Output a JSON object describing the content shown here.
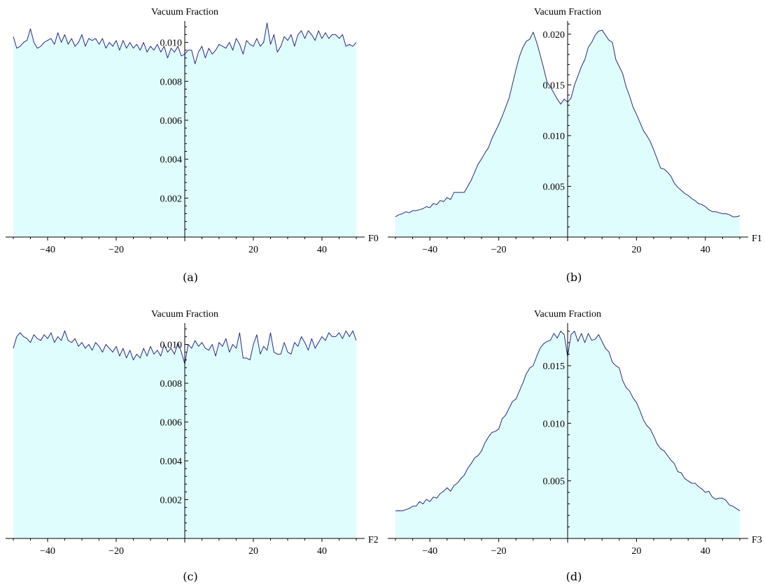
{
  "figure": {
    "colors": {
      "fill": "#e0fdfd",
      "line": "#2b2a86",
      "axis": "#000000"
    }
  },
  "chart_data": [
    {
      "type": "area",
      "title": "Vacuum Fraction",
      "xlabel": "F0",
      "caption": "(a)",
      "xlim": [
        -50,
        50
      ],
      "ylim": [
        0,
        0.0111
      ],
      "xticks": [
        -40,
        -20,
        20,
        40
      ],
      "xtick_labels": [
        "−40",
        "−20",
        "20",
        "40"
      ],
      "yticks": [
        0.002,
        0.004,
        0.006,
        0.008,
        0.01
      ],
      "ytick_labels": [
        "0.002",
        "0.004",
        "0.006",
        "0.008",
        "0.010"
      ],
      "x": [
        -50,
        -49,
        -48,
        -47,
        -46,
        -45,
        -44,
        -43,
        -42,
        -41,
        -40,
        -39,
        -38,
        -37,
        -36,
        -35,
        -34,
        -33,
        -32,
        -31,
        -30,
        -29,
        -28,
        -27,
        -26,
        -25,
        -24,
        -23,
        -22,
        -21,
        -20,
        -19,
        -18,
        -17,
        -16,
        -15,
        -14,
        -13,
        -12,
        -11,
        -10,
        -9,
        -8,
        -7,
        -6,
        -5,
        -4,
        -3,
        -2,
        -1,
        0,
        1,
        2,
        3,
        4,
        5,
        6,
        7,
        8,
        9,
        10,
        11,
        12,
        13,
        14,
        15,
        16,
        17,
        18,
        19,
        20,
        21,
        22,
        23,
        24,
        25,
        26,
        27,
        28,
        29,
        30,
        31,
        32,
        33,
        34,
        35,
        36,
        37,
        38,
        39,
        40,
        41,
        42,
        43,
        44,
        45,
        46,
        47,
        48,
        49,
        50
      ],
      "y": [
        0.0103,
        0.0097,
        0.0098,
        0.01,
        0.0101,
        0.0107,
        0.01,
        0.0097,
        0.0098,
        0.01,
        0.0101,
        0.0102,
        0.0099,
        0.0105,
        0.01,
        0.0104,
        0.0099,
        0.0102,
        0.0098,
        0.01,
        0.0104,
        0.0098,
        0.0102,
        0.0101,
        0.0102,
        0.0099,
        0.0102,
        0.0097,
        0.01,
        0.0098,
        0.0101,
        0.0096,
        0.0101,
        0.0097,
        0.01,
        0.0097,
        0.0099,
        0.0096,
        0.01,
        0.0095,
        0.0098,
        0.0096,
        0.0099,
        0.0095,
        0.0098,
        0.0092,
        0.0097,
        0.0095,
        0.0098,
        0.0093,
        0.0094,
        0.0096,
        0.0096,
        0.0089,
        0.0095,
        0.0098,
        0.0092,
        0.0097,
        0.0094,
        0.0096,
        0.0099,
        0.0098,
        0.0097,
        0.01,
        0.0096,
        0.0102,
        0.0099,
        0.0094,
        0.0101,
        0.0099,
        0.0098,
        0.0102,
        0.0098,
        0.01,
        0.011,
        0.0099,
        0.0104,
        0.0095,
        0.0098,
        0.0103,
        0.0101,
        0.0104,
        0.0098,
        0.0104,
        0.0106,
        0.0102,
        0.0106,
        0.0104,
        0.0101,
        0.0106,
        0.0102,
        0.0105,
        0.0102,
        0.0104,
        0.0104,
        0.0102,
        0.0104,
        0.0098,
        0.0099,
        0.0098,
        0.01
      ]
    },
    {
      "type": "area",
      "title": "Vacuum Fraction",
      "xlabel": "F1",
      "caption": "(b)",
      "xlim": [
        -50,
        50
      ],
      "ylim": [
        0,
        0.0213
      ],
      "xticks": [
        -40,
        -20,
        20,
        40
      ],
      "xtick_labels": [
        "−40",
        "−20",
        "20",
        "40"
      ],
      "yticks": [
        0.005,
        0.01,
        0.015,
        0.02
      ],
      "ytick_labels": [
        "0.005",
        "0.010",
        "0.015",
        "0.020"
      ],
      "x": [
        -50,
        -49,
        -48,
        -47,
        -46,
        -45,
        -44,
        -43,
        -42,
        -41,
        -40,
        -39,
        -38,
        -37,
        -36,
        -35,
        -34,
        -33,
        -32,
        -31,
        -30,
        -29,
        -28,
        -27,
        -26,
        -25,
        -24,
        -23,
        -22,
        -21,
        -20,
        -19,
        -18,
        -17,
        -16,
        -15,
        -14,
        -13,
        -12,
        -11,
        -10,
        -9,
        -8,
        -7,
        -6,
        -5,
        -4,
        -3,
        -2,
        -1,
        0,
        1,
        2,
        3,
        4,
        5,
        6,
        7,
        8,
        9,
        10,
        11,
        12,
        13,
        14,
        15,
        16,
        17,
        18,
        19,
        20,
        21,
        22,
        23,
        24,
        25,
        26,
        27,
        28,
        29,
        30,
        31,
        32,
        33,
        34,
        35,
        36,
        37,
        38,
        39,
        40,
        41,
        42,
        43,
        44,
        45,
        46,
        47,
        48,
        49,
        50
      ],
      "y": [
        0.002,
        0.0022,
        0.0023,
        0.0025,
        0.0024,
        0.0026,
        0.0026,
        0.0027,
        0.0028,
        0.003,
        0.0029,
        0.0033,
        0.0032,
        0.0036,
        0.0035,
        0.0039,
        0.0037,
        0.0044,
        0.0044,
        0.0044,
        0.0044,
        0.005,
        0.0056,
        0.0064,
        0.0072,
        0.0077,
        0.0083,
        0.0088,
        0.0097,
        0.0104,
        0.0111,
        0.0119,
        0.0128,
        0.0137,
        0.0151,
        0.0165,
        0.0178,
        0.0187,
        0.0193,
        0.0195,
        0.0202,
        0.0192,
        0.018,
        0.0167,
        0.0153,
        0.0148,
        0.0142,
        0.0136,
        0.0131,
        0.0136,
        0.0133,
        0.0137,
        0.015,
        0.0159,
        0.0168,
        0.0175,
        0.0187,
        0.0192,
        0.0199,
        0.0203,
        0.0204,
        0.0199,
        0.0194,
        0.0192,
        0.0175,
        0.0168,
        0.0161,
        0.0148,
        0.0139,
        0.0128,
        0.0121,
        0.0113,
        0.0105,
        0.01,
        0.0094,
        0.0086,
        0.0077,
        0.0068,
        0.0067,
        0.0064,
        0.006,
        0.0053,
        0.0049,
        0.0046,
        0.0043,
        0.0041,
        0.0038,
        0.0036,
        0.0033,
        0.0032,
        0.003,
        0.0027,
        0.0025,
        0.0025,
        0.0024,
        0.0023,
        0.0023,
        0.0022,
        0.002,
        0.002,
        0.0021
      ]
    },
    {
      "type": "area",
      "title": "Vacuum Fraction",
      "xlabel": "F2",
      "caption": "(c)",
      "xlim": [
        -50,
        50
      ],
      "ylim": [
        0,
        0.0111
      ],
      "xticks": [
        -40,
        -20,
        20,
        40
      ],
      "xtick_labels": [
        "−40",
        "−20",
        "20",
        "40"
      ],
      "yticks": [
        0.002,
        0.004,
        0.006,
        0.008,
        0.01
      ],
      "ytick_labels": [
        "0.002",
        "0.004",
        "0.006",
        "0.008",
        "0.010"
      ],
      "x": [
        -50,
        -49,
        -48,
        -47,
        -46,
        -45,
        -44,
        -43,
        -42,
        -41,
        -40,
        -39,
        -38,
        -37,
        -36,
        -35,
        -34,
        -33,
        -32,
        -31,
        -30,
        -29,
        -28,
        -27,
        -26,
        -25,
        -24,
        -23,
        -22,
        -21,
        -20,
        -19,
        -18,
        -17,
        -16,
        -15,
        -14,
        -13,
        -12,
        -11,
        -10,
        -9,
        -8,
        -7,
        -6,
        -5,
        -4,
        -3,
        -2,
        -1,
        0,
        1,
        2,
        3,
        4,
        5,
        6,
        7,
        8,
        9,
        10,
        11,
        12,
        13,
        14,
        15,
        16,
        17,
        18,
        19,
        20,
        21,
        22,
        23,
        24,
        25,
        26,
        27,
        28,
        29,
        30,
        31,
        32,
        33,
        34,
        35,
        36,
        37,
        38,
        39,
        40,
        41,
        42,
        43,
        44,
        45,
        46,
        47,
        48,
        49,
        50
      ],
      "y": [
        0.0098,
        0.0104,
        0.0106,
        0.0104,
        0.0103,
        0.0101,
        0.0105,
        0.0103,
        0.0102,
        0.0105,
        0.0103,
        0.0106,
        0.0101,
        0.0104,
        0.0102,
        0.0107,
        0.0102,
        0.0101,
        0.0103,
        0.0099,
        0.0101,
        0.0098,
        0.01,
        0.0097,
        0.0101,
        0.0099,
        0.0096,
        0.01,
        0.0098,
        0.0096,
        0.0099,
        0.0094,
        0.0098,
        0.0093,
        0.0097,
        0.0092,
        0.0095,
        0.0093,
        0.0098,
        0.0094,
        0.0099,
        0.0095,
        0.0097,
        0.0094,
        0.01,
        0.0096,
        0.0098,
        0.0095,
        0.0101,
        0.0096,
        0.009,
        0.01,
        0.0098,
        0.0102,
        0.0099,
        0.0101,
        0.0098,
        0.0097,
        0.01,
        0.0094,
        0.0101,
        0.0099,
        0.0103,
        0.0096,
        0.01,
        0.0098,
        0.0106,
        0.0093,
        0.0093,
        0.0092,
        0.01,
        0.0105,
        0.0095,
        0.0099,
        0.0097,
        0.0106,
        0.0096,
        0.0095,
        0.0095,
        0.0101,
        0.0096,
        0.0095,
        0.0101,
        0.0099,
        0.0104,
        0.0101,
        0.0097,
        0.0103,
        0.0098,
        0.0101,
        0.0104,
        0.0102,
        0.0106,
        0.0104,
        0.0104,
        0.0106,
        0.0103,
        0.0107,
        0.0104,
        0.0107,
        0.0102
      ]
    },
    {
      "type": "area",
      "title": "Vacuum Fraction",
      "xlabel": "F3",
      "caption": "(d)",
      "xlim": [
        -50,
        50
      ],
      "ylim": [
        0,
        0.0187
      ],
      "xticks": [
        -40,
        -20,
        20,
        40
      ],
      "xtick_labels": [
        "−40",
        "−20",
        "20",
        "40"
      ],
      "yticks": [
        0.005,
        0.01,
        0.015
      ],
      "ytick_labels": [
        "0.005",
        "0.010",
        "0.015"
      ],
      "x": [
        -50,
        -49,
        -48,
        -47,
        -46,
        -45,
        -44,
        -43,
        -42,
        -41,
        -40,
        -39,
        -38,
        -37,
        -36,
        -35,
        -34,
        -33,
        -32,
        -31,
        -30,
        -29,
        -28,
        -27,
        -26,
        -25,
        -24,
        -23,
        -22,
        -21,
        -20,
        -19,
        -18,
        -17,
        -16,
        -15,
        -14,
        -13,
        -12,
        -11,
        -10,
        -9,
        -8,
        -7,
        -6,
        -5,
        -4,
        -3,
        -2,
        -1,
        0,
        1,
        2,
        3,
        4,
        5,
        6,
        7,
        8,
        9,
        10,
        11,
        12,
        13,
        14,
        15,
        16,
        17,
        18,
        19,
        20,
        21,
        22,
        23,
        24,
        25,
        26,
        27,
        28,
        29,
        30,
        31,
        32,
        33,
        34,
        35,
        36,
        37,
        38,
        39,
        40,
        41,
        42,
        43,
        44,
        45,
        46,
        47,
        48,
        49,
        50
      ],
      "y": [
        0.0024,
        0.0024,
        0.0024,
        0.0025,
        0.0026,
        0.0028,
        0.0028,
        0.0032,
        0.003,
        0.0034,
        0.0032,
        0.0036,
        0.0035,
        0.0039,
        0.0041,
        0.0044,
        0.0041,
        0.0046,
        0.0048,
        0.0052,
        0.0055,
        0.0061,
        0.0065,
        0.007,
        0.0072,
        0.0076,
        0.0083,
        0.0088,
        0.0092,
        0.0093,
        0.0095,
        0.0104,
        0.0107,
        0.0113,
        0.0119,
        0.0121,
        0.0128,
        0.0135,
        0.0143,
        0.0148,
        0.015,
        0.0158,
        0.0165,
        0.0169,
        0.0171,
        0.0172,
        0.0178,
        0.0174,
        0.018,
        0.0177,
        0.0158,
        0.0177,
        0.018,
        0.0171,
        0.0178,
        0.017,
        0.0178,
        0.0172,
        0.0173,
        0.0177,
        0.0171,
        0.0165,
        0.0162,
        0.0153,
        0.015,
        0.0148,
        0.0137,
        0.0131,
        0.0128,
        0.0122,
        0.0118,
        0.0111,
        0.0103,
        0.0098,
        0.0095,
        0.0089,
        0.0082,
        0.0078,
        0.0076,
        0.0072,
        0.0068,
        0.0065,
        0.0058,
        0.0057,
        0.0052,
        0.005,
        0.0048,
        0.0048,
        0.0045,
        0.0043,
        0.004,
        0.0041,
        0.0036,
        0.0034,
        0.0035,
        0.0035,
        0.0033,
        0.0029,
        0.0028,
        0.0026,
        0.0024
      ]
    }
  ]
}
